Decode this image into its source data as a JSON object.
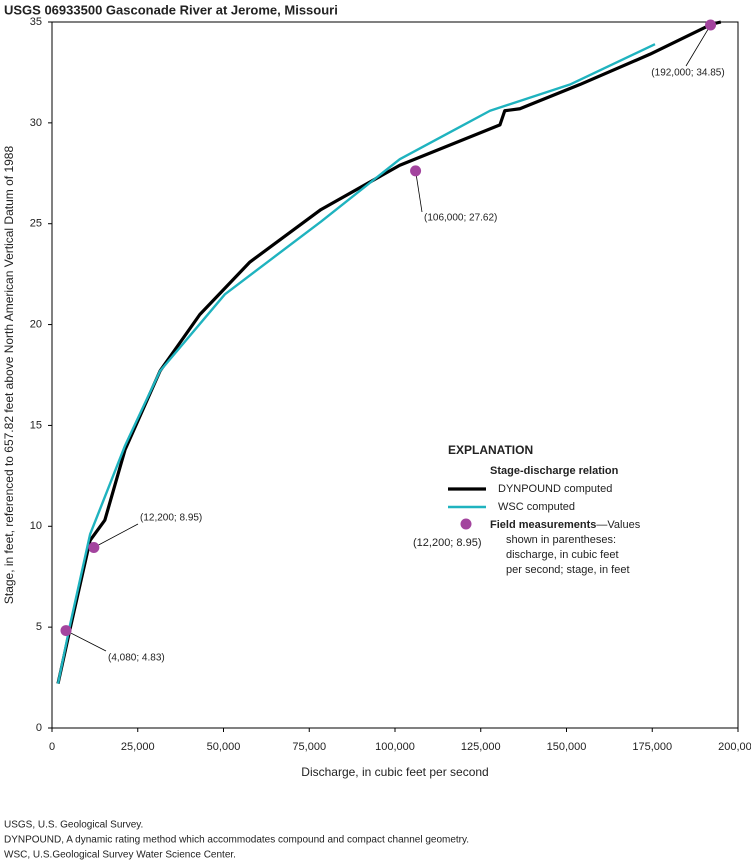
{
  "chart_data": {
    "type": "line",
    "title": "USGS 06933500 Gasconade River at Jerome, Missouri",
    "x_label": "Discharge, in cubic feet per second",
    "y_label": "Stage, in feet, referenced to 657.82 feet above North American Vertical Datum of 1988",
    "xlim": [
      0,
      200000
    ],
    "ylim": [
      0,
      35
    ],
    "xticks": [
      0,
      {
        "value": 25000,
        "label": "25,000"
      },
      {
        "value": 50000,
        "label": "50,000"
      },
      {
        "value": 75000,
        "label": "75,000"
      },
      {
        "value": 100000,
        "label": "100,000"
      },
      {
        "value": 125000,
        "label": "125,000"
      },
      {
        "value": 150000,
        "label": "150,000"
      },
      {
        "value": 175000,
        "label": "175,000"
      },
      {
        "value": 200000,
        "label": "200,000"
      }
    ],
    "yticks": [
      0,
      5,
      10,
      15,
      20,
      25,
      30,
      35
    ],
    "series": [
      {
        "name": "DYNPOUND computed",
        "color": "#000000",
        "x": [
          1750,
          5250,
          11100,
          15400,
          21300,
          31500,
          43100,
          57700,
          78400,
          101400,
          130600,
          132000,
          136400,
          153900,
          174300,
          192400,
          195000
        ],
        "values": [
          2.2,
          4.9,
          9.3,
          10.3,
          13.8,
          17.7,
          20.5,
          23.1,
          25.7,
          27.9,
          29.9,
          30.6,
          30.7,
          31.9,
          33.4,
          34.9,
          35
        ]
      },
      {
        "name": "WSC computed",
        "color": "#1fb3bf",
        "x": [
          1750,
          5250,
          11100,
          21300,
          31500,
          50400,
          63600,
          78400,
          101400,
          127700,
          151000,
          175800
        ],
        "values": [
          2.2,
          5.1,
          9.6,
          14.0,
          17.7,
          21.5,
          23.2,
          25.1,
          28.2,
          30.6,
          31.9,
          33.9
        ]
      }
    ],
    "points": {
      "name": "Field measurements",
      "color": "#a3449e",
      "x": [
        4080,
        12200,
        106000,
        192000
      ],
      "values": [
        4.83,
        8.95,
        27.62,
        34.85
      ],
      "value_labels": [
        "(4,080; 4.83)",
        "(12,200; 8.95)",
        "(106,000; 27.62)",
        "(192,000; 34.85)"
      ]
    },
    "legend": {
      "title": "EXPLANATION",
      "group": "Stage-discharge relation",
      "note_lines": [
        "—Values",
        "shown in parentheses:",
        "discharge, in cubic feet",
        "per second; stage, in feet"
      ],
      "example": "(12,200; 8.95)"
    }
  },
  "footnotes": [
    "USGS, U.S. Geological Survey.",
    "DYNPOUND, A dynamic rating method which accommodates compound and compact channel geometry.",
    "WSC, U.S.Geological Survey Water Science Center."
  ]
}
